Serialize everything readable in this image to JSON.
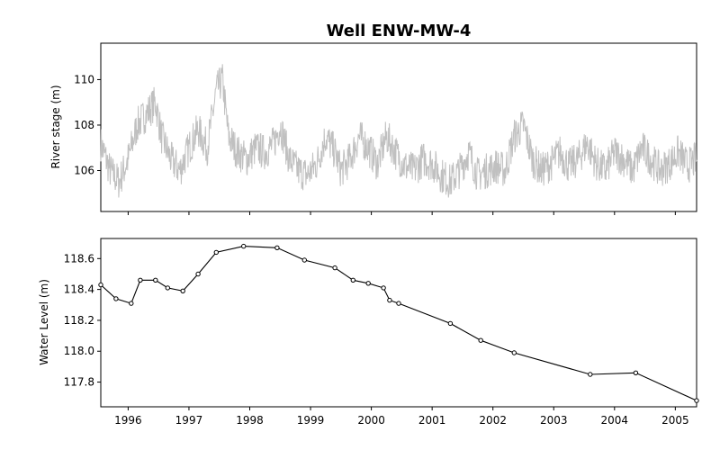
{
  "figure": {
    "title": "Well ENW-MW-4"
  },
  "chart_data": [
    {
      "type": "line",
      "panel": "top",
      "ylabel": "River stage (m)",
      "xlabel": "",
      "xlim": [
        1995.55,
        2005.35
      ],
      "ylim": [
        104.2,
        111.6
      ],
      "yticks": [
        106,
        108,
        110
      ],
      "x_ticks_labeled": false,
      "series": [
        {
          "color": "#c0c0c0",
          "style": "dense high-frequency trace (daily stage)",
          "x": [
            1995.55,
            1995.7,
            1995.85,
            1996.0,
            1996.15,
            1996.3,
            1996.45,
            1996.55,
            1996.7,
            1996.85,
            1997.0,
            1997.15,
            1997.3,
            1997.45,
            1997.55,
            1997.65,
            1997.8,
            1997.95,
            1998.1,
            1998.25,
            1998.4,
            1998.5,
            1998.65,
            1998.8,
            1998.95,
            1999.1,
            1999.25,
            1999.4,
            1999.5,
            1999.65,
            1999.8,
            1999.95,
            2000.1,
            2000.25,
            2000.4,
            2000.55,
            2000.7,
            2000.85,
            2001.0,
            2001.15,
            2001.3,
            2001.45,
            2001.6,
            2001.75,
            2001.9,
            2002.05,
            2002.2,
            2002.35,
            2002.5,
            2002.65,
            2002.8,
            2002.95,
            2003.1,
            2003.25,
            2003.4,
            2003.55,
            2003.7,
            2003.85,
            2004.0,
            2004.15,
            2004.3,
            2004.45,
            2004.6,
            2004.75,
            2004.9,
            2005.05,
            2005.2,
            2005.35
          ],
          "y": [
            107.2,
            106.0,
            105.5,
            106.5,
            108.0,
            108.5,
            109.0,
            107.5,
            106.5,
            106.0,
            107.0,
            107.8,
            107.0,
            109.5,
            110.0,
            107.5,
            106.8,
            106.5,
            107.0,
            106.8,
            107.2,
            108.0,
            106.5,
            106.0,
            105.8,
            106.3,
            107.5,
            106.8,
            106.0,
            106.5,
            107.5,
            107.0,
            106.3,
            107.5,
            106.8,
            106.2,
            106.0,
            106.5,
            106.3,
            105.8,
            105.5,
            106.0,
            106.8,
            105.8,
            106.0,
            106.2,
            106.0,
            107.5,
            108.0,
            106.5,
            106.0,
            106.3,
            106.8,
            106.2,
            106.5,
            107.2,
            106.3,
            106.0,
            106.8,
            106.5,
            106.0,
            107.0,
            106.5,
            106.0,
            106.3,
            106.8,
            106.2,
            106.5
          ]
        }
      ],
      "grid": false
    },
    {
      "type": "line",
      "panel": "bottom",
      "ylabel": "Water Level (m)",
      "xlabel": "",
      "xlim": [
        1995.55,
        2005.35
      ],
      "ylim": [
        117.64,
        118.73
      ],
      "yticks": [
        117.8,
        118.0,
        118.2,
        118.4,
        118.6
      ],
      "xticks": [
        1996,
        1997,
        1998,
        1999,
        2000,
        2001,
        2002,
        2003,
        2004,
        2005
      ],
      "series": [
        {
          "color": "#000000",
          "marker": "open-circle",
          "x": [
            1995.55,
            1995.8,
            1996.05,
            1996.2,
            1996.45,
            1996.65,
            1996.9,
            1997.15,
            1997.45,
            1997.9,
            1998.45,
            1998.9,
            1999.4,
            1999.7,
            1999.95,
            2000.2,
            2000.3,
            2000.45,
            2001.3,
            2001.8,
            2002.35,
            2003.6,
            2004.35,
            2005.35
          ],
          "y": [
            118.43,
            118.34,
            118.31,
            118.46,
            118.46,
            118.41,
            118.39,
            118.5,
            118.64,
            118.68,
            118.67,
            118.59,
            118.54,
            118.46,
            118.44,
            118.41,
            118.33,
            118.31,
            118.18,
            118.07,
            117.99,
            117.85,
            117.86,
            117.68
          ]
        }
      ],
      "grid": false
    }
  ]
}
